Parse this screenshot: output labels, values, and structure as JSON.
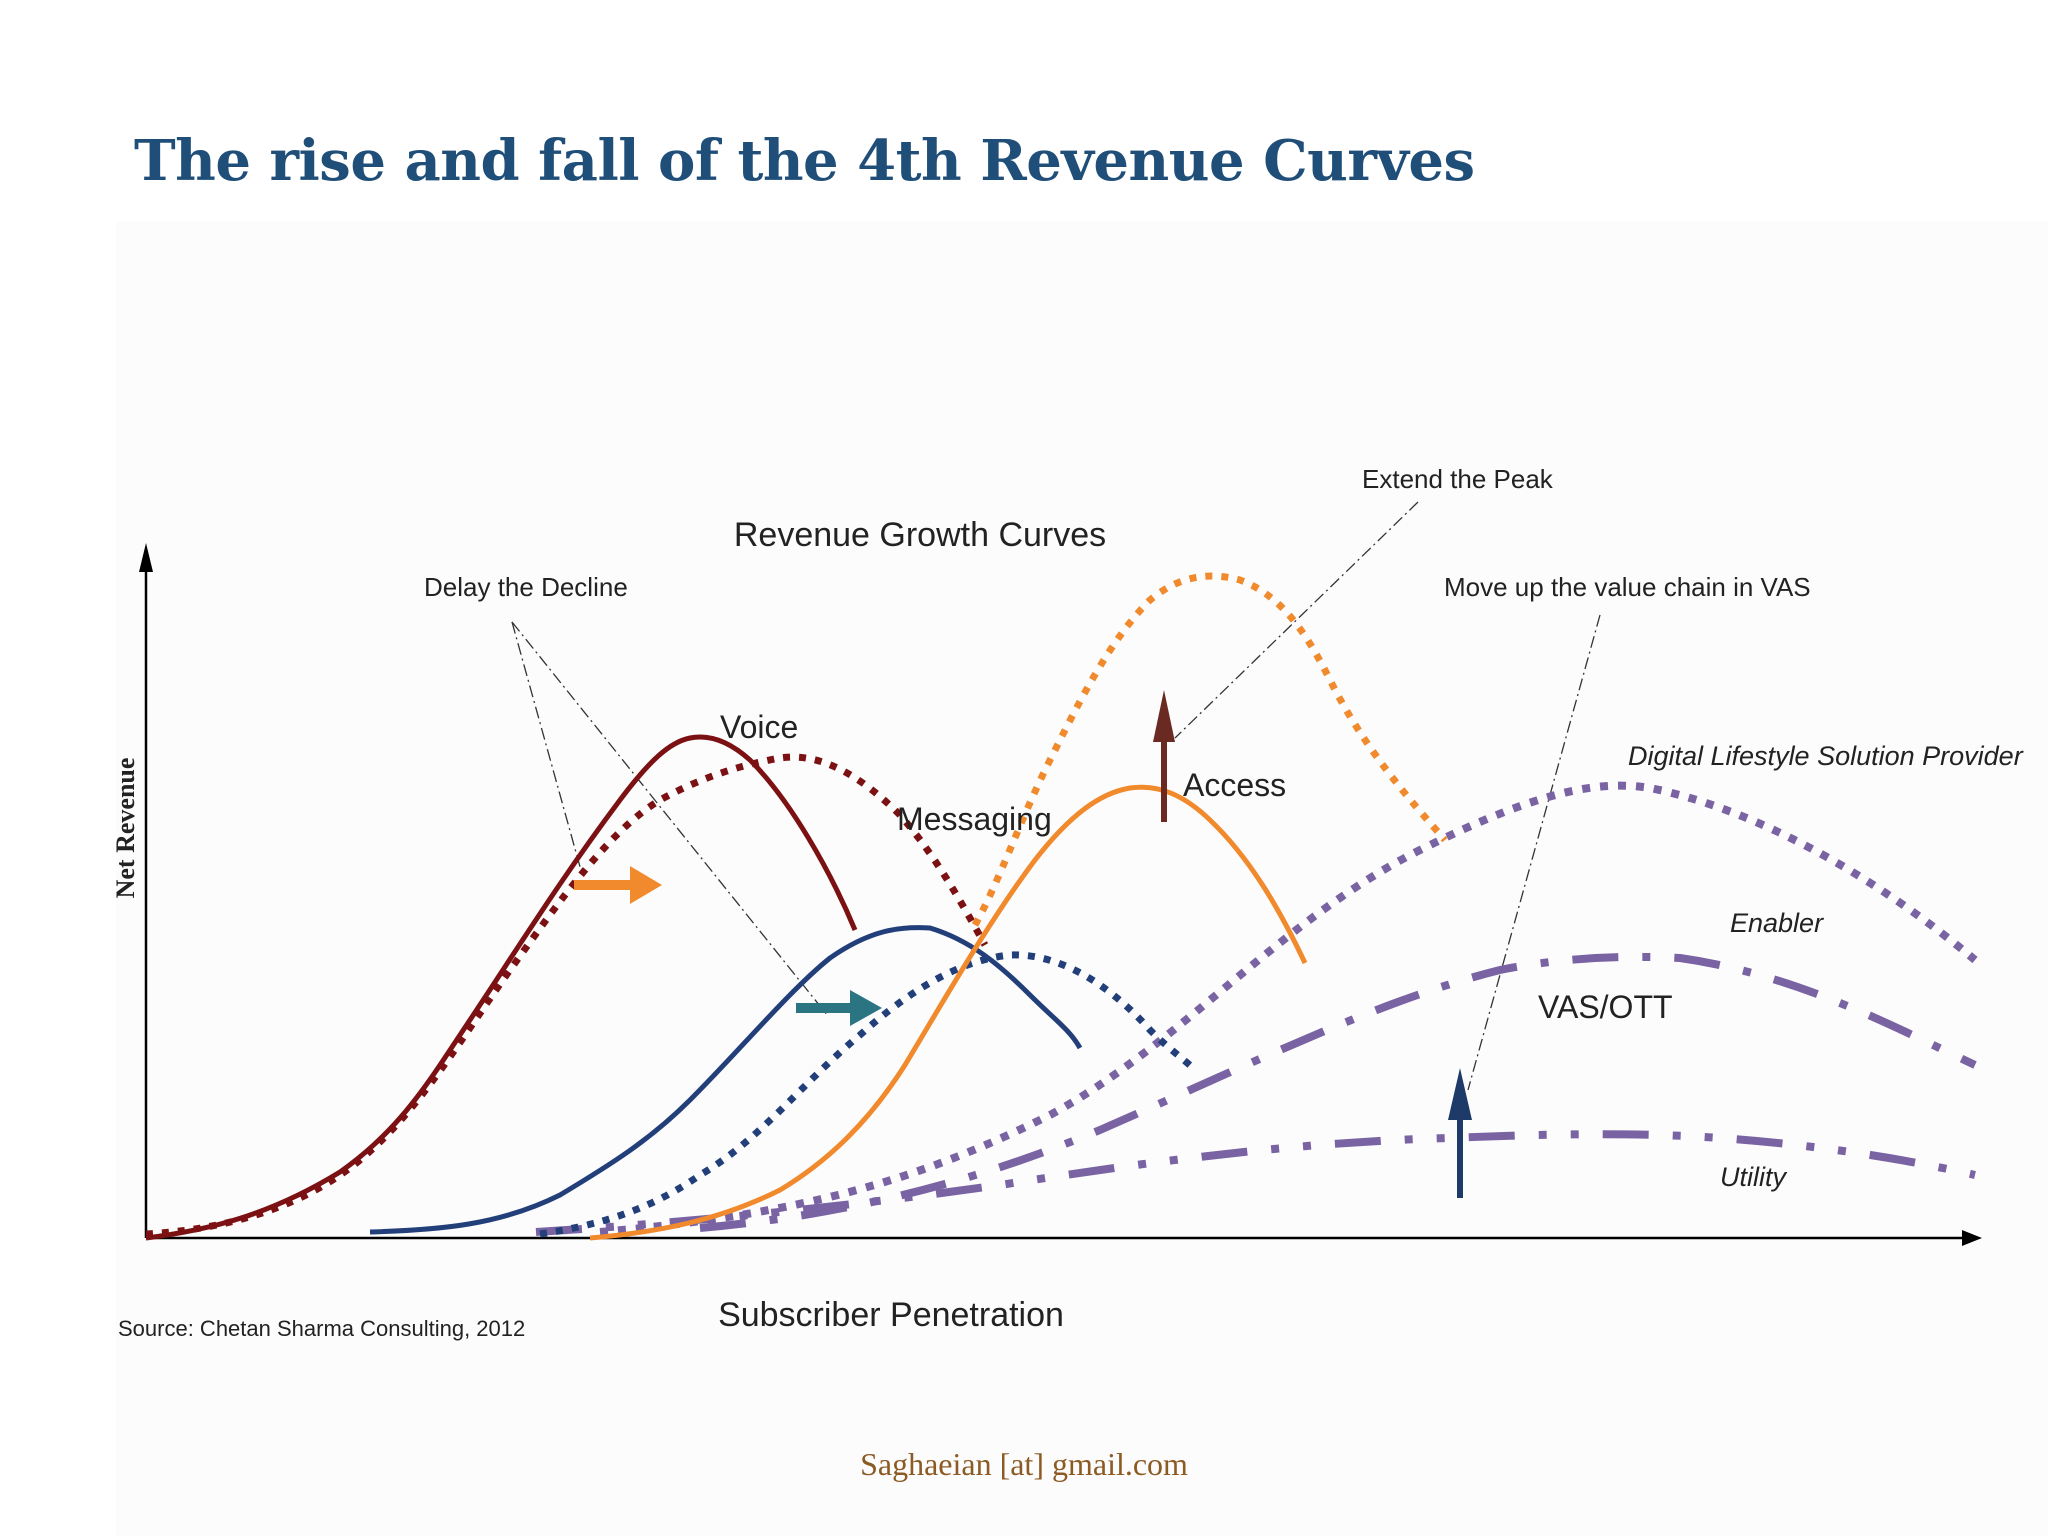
{
  "title": "The rise and fall of the 4th Revenue Curves",
  "footer": "Saghaeian [at] gmail.com",
  "colors": {
    "title": "#1f4e79",
    "voice": "#7b1113",
    "messaging": "#233f7a",
    "access": "#f08a2c",
    "purple": "#7a63a3",
    "arrow_orange": "#f08a2c",
    "arrow_teal": "#2b7582",
    "arrow_brown": "#6a2a22",
    "arrow_navy": "#1d3a68",
    "footer": "#8c5a23"
  },
  "chart": {
    "title": "Revenue Growth Curves",
    "ylabel": "Net Revenue",
    "xlabel": "Subscriber Penetration",
    "source": "Source:  Chetan Sharma Consulting, 2012",
    "curve_labels": {
      "voice": "Voice",
      "messaging": "Messaging",
      "access": "Access",
      "dlsp": "Digital Lifestyle Solution Provider",
      "enabler": "Enabler",
      "vas": "VAS/OTT",
      "utility": "Utility"
    },
    "annotations": {
      "delay": "Delay the Decline",
      "extend": "Extend the Peak",
      "move_up": "Move up the value chain in VAS"
    }
  }
}
